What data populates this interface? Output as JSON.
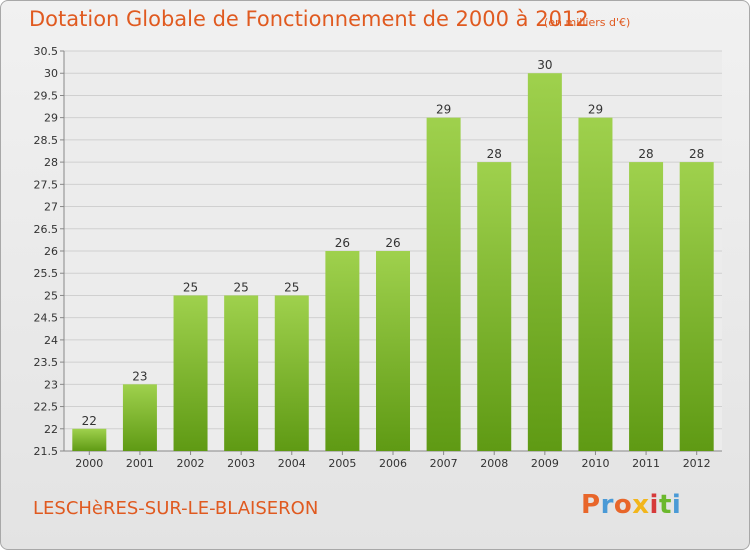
{
  "header": {
    "title": "Dotation Globale de Fonctionnement de 2000 à 2012",
    "unit": "(en milliers d'€)"
  },
  "footer": {
    "town": "LESCHèRES-SUR-LE-BLAISERON",
    "brand": "Proxiti",
    "brand_colors": [
      "#e8662a",
      "#4a9ad6",
      "#e8662a",
      "#f2b61c",
      "#d63a3a",
      "#6bb82c",
      "#4a9ad6"
    ]
  },
  "chart_data": {
    "type": "bar",
    "categories": [
      "2000",
      "2001",
      "2002",
      "2003",
      "2004",
      "2005",
      "2006",
      "2007",
      "2008",
      "2009",
      "2010",
      "2011",
      "2012"
    ],
    "values": [
      22,
      23,
      25,
      25,
      25,
      26,
      26,
      29,
      28,
      30,
      29,
      28,
      28
    ],
    "data_labels": [
      "22",
      "23",
      "25",
      "25",
      "25",
      "26",
      "26",
      "29",
      "28",
      "30",
      "29",
      "28",
      "28"
    ],
    "title": "Dotation Globale de Fonctionnement de 2000 à 2012",
    "ylim": [
      21.5,
      30.5
    ],
    "yticks": [
      "21.5",
      "22",
      "22.5",
      "23",
      "23.5",
      "24",
      "24.5",
      "25",
      "25.5",
      "26",
      "26.5",
      "27",
      "27.5",
      "28",
      "28.5",
      "29",
      "29.5",
      "30",
      "30.5"
    ],
    "grid": true,
    "bar_color_top": "#9fd14d",
    "bar_color_bottom": "#5f9a14",
    "text_color": "#e05a20"
  }
}
